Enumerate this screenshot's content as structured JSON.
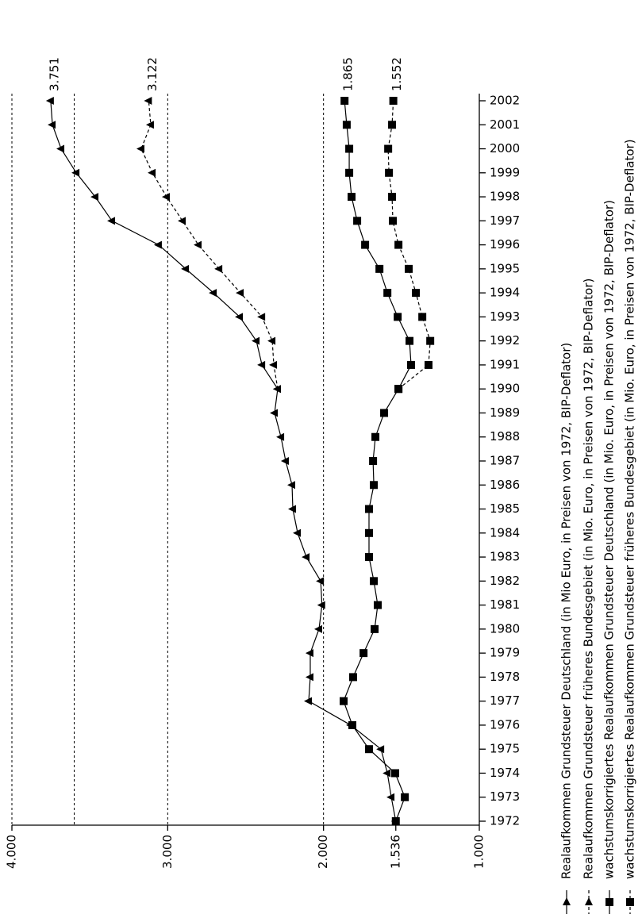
{
  "chart_data": {
    "type": "line",
    "orientation": "rotated",
    "categories": [
      "1972",
      "1973",
      "1974",
      "1975",
      "1976",
      "1977",
      "1978",
      "1979",
      "1980",
      "1981",
      "1982",
      "1983",
      "1984",
      "1985",
      "1986",
      "1987",
      "1988",
      "1989",
      "1990",
      "1991",
      "1992",
      "1993",
      "1994",
      "1995",
      "1996",
      "1997",
      "1998",
      "1999",
      "2000",
      "2001",
      "2002"
    ],
    "series": [
      {
        "name": "Realaufkommen Grundsteuer Deutschland (in Mio Euro, in Preisen von 1972, BIP-Deflator)",
        "color": "#000000",
        "dashed": false,
        "marker": "triangle",
        "values": [
          1536,
          1565,
          1590,
          1631,
          1825,
          2095,
          2085,
          2085,
          2029,
          2010,
          2018,
          2110,
          2166,
          2197,
          2202,
          2243,
          2273,
          2314,
          2294,
          2395,
          2431,
          2538,
          2706,
          2884,
          3058,
          3358,
          3465,
          3587,
          3684,
          3740,
          3751
        ],
        "value_labels": [
          null,
          null,
          null,
          null,
          null,
          null,
          null,
          null,
          null,
          null,
          null,
          null,
          null,
          null,
          null,
          null,
          null,
          null,
          null,
          null,
          null,
          null,
          null,
          null,
          null,
          null,
          null,
          null,
          null,
          null,
          "3.751"
        ]
      },
      {
        "name": "Realaufkommen Grundsteuer früheres Bundesgebiet (in Mio. Euro, in Preisen von 1972, BIP-Deflator)",
        "color": "#000000",
        "dashed": true,
        "marker": "triangle",
        "values": [
          null,
          null,
          null,
          null,
          null,
          null,
          null,
          null,
          null,
          null,
          null,
          null,
          null,
          null,
          null,
          null,
          null,
          null,
          2294,
          2319,
          2329,
          2395,
          2533,
          2670,
          2803,
          2905,
          3007,
          3098,
          3170,
          3109,
          3122
        ],
        "value_labels": [
          null,
          null,
          null,
          null,
          null,
          null,
          null,
          null,
          null,
          null,
          null,
          null,
          null,
          null,
          null,
          null,
          null,
          null,
          null,
          null,
          null,
          null,
          null,
          null,
          null,
          null,
          null,
          null,
          null,
          null,
          "3.122"
        ]
      },
      {
        "name": "wachstumskorrigiertes Realaufkommen Grundsteuer Deutschland (in Mio. Euro, in Preisen von 1972, BIP-Deflator)",
        "color": "#000000",
        "dashed": false,
        "marker": "square",
        "values": [
          1536,
          1478,
          1540,
          1708,
          1815,
          1871,
          1810,
          1743,
          1672,
          1652,
          1677,
          1708,
          1708,
          1708,
          1677,
          1682,
          1667,
          1611,
          1519,
          1438,
          1448,
          1524,
          1590,
          1641,
          1733,
          1784,
          1820,
          1835,
          1835,
          1851,
          1865
        ],
        "value_labels": [
          null,
          null,
          null,
          null,
          null,
          null,
          null,
          null,
          null,
          null,
          null,
          null,
          null,
          null,
          null,
          null,
          null,
          null,
          null,
          null,
          null,
          null,
          null,
          null,
          null,
          null,
          null,
          null,
          null,
          null,
          "1.865"
        ]
      },
      {
        "name": "wachstumskorrigiertes Realaufkommen Grundsteuer früheres Bundesgebiet (in Mio. Euro, in Preisen von 1972, BIP-Deflator)",
        "color": "#000000",
        "dashed": true,
        "marker": "square",
        "values": [
          null,
          null,
          null,
          null,
          null,
          null,
          null,
          null,
          null,
          null,
          null,
          null,
          null,
          null,
          null,
          null,
          null,
          null,
          1519,
          1326,
          1315,
          1366,
          1407,
          1453,
          1519,
          1555,
          1560,
          1580,
          1585,
          1560,
          1552
        ],
        "value_labels": [
          null,
          null,
          null,
          null,
          null,
          null,
          null,
          null,
          null,
          null,
          null,
          null,
          null,
          null,
          null,
          null,
          null,
          null,
          null,
          null,
          null,
          null,
          null,
          null,
          null,
          null,
          null,
          null,
          null,
          null,
          "1.552"
        ]
      }
    ],
    "ylim": [
      4000,
      1000
    ],
    "yticks": [
      {
        "value": 4000,
        "label": "4.000"
      },
      {
        "value": 3000,
        "label": "3.000"
      },
      {
        "value": 2000,
        "label": "2.000"
      },
      {
        "value": 1536,
        "label": "1.536"
      },
      {
        "value": 1000,
        "label": "1.000"
      }
    ],
    "grid_lines": [
      4000,
      3600,
      3000,
      2000
    ],
    "legend": "bottom"
  }
}
